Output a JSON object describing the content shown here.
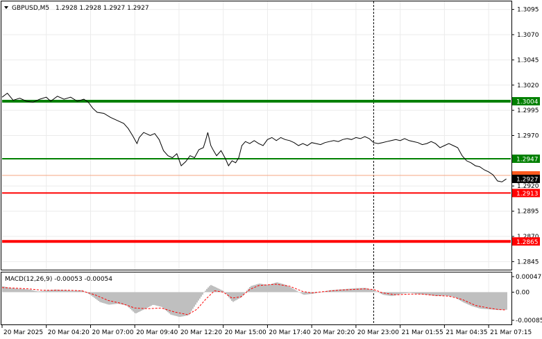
{
  "header": {
    "symbol": "GBPUSD,M5",
    "ohlc": "1.2928 1.2928 1.2927 1.2927"
  },
  "macd": {
    "label": "MACD(12,26,9) -0.00053 -0.00054",
    "scale_labels": [
      "0.00047",
      "0.00",
      "-0.00085"
    ],
    "ylim": [
      -0.00085,
      0.00047
    ],
    "colors": {
      "histogram": "#bfbfbf",
      "signal": "#ff0000"
    }
  },
  "colors": {
    "support_green": "#008000",
    "resistance_red": "#ff0000",
    "price_line": "#000000",
    "bid_line": "#f4a582",
    "current_price_label_bg": "#000000"
  },
  "chart_data": {
    "type": "line",
    "title": "GBPUSD,M5",
    "ylim": [
      1.2837,
      1.3103
    ],
    "y_ticks": [
      "1.3095",
      "1.3070",
      "1.3045",
      "1.3020",
      "1.2995",
      "1.2970",
      "1.2920",
      "1.2895",
      "1.2870",
      "1.2845"
    ],
    "x_ticks": [
      "20 Mar 2025",
      "20 Mar 04:20",
      "20 Mar 07:00",
      "20 Mar 09:40",
      "20 Mar 12:20",
      "20 Mar 15:00",
      "20 Mar 17:40",
      "20 Mar 20:20",
      "20 Mar 23:00",
      "21 Mar 01:55",
      "21 Mar 04:35",
      "21 Mar 07:15"
    ],
    "x_range": [
      0,
      11.5
    ],
    "vertical_marker_x": 8.4,
    "levels": [
      {
        "value": 1.3004,
        "label": "1.3004",
        "color": "#008000",
        "width": 4
      },
      {
        "value": 1.2947,
        "label": "1.2947",
        "color": "#008000",
        "width": 2
      },
      {
        "value": 1.2913,
        "label": "1.2913",
        "color": "#ff0000",
        "width": 2
      },
      {
        "value": 1.2865,
        "label": "1.2865",
        "color": "#ff0000",
        "width": 4
      }
    ],
    "current_price": {
      "value": 1.2927,
      "label": "1.2927"
    },
    "ask_line": {
      "value": 1.29305
    },
    "series": [
      {
        "values": [
          [
            0.0,
            1.3008
          ],
          [
            0.12,
            1.3012
          ],
          [
            0.25,
            1.3005
          ],
          [
            0.4,
            1.3007
          ],
          [
            0.55,
            1.3004
          ],
          [
            0.7,
            1.3003
          ],
          [
            0.85,
            1.3006
          ],
          [
            1.0,
            1.3008
          ],
          [
            1.1,
            1.3004
          ],
          [
            1.25,
            1.3009
          ],
          [
            1.4,
            1.3006
          ],
          [
            1.55,
            1.3008
          ],
          [
            1.7,
            1.3004
          ],
          [
            1.85,
            1.3006
          ],
          [
            1.95,
            1.3003
          ],
          [
            2.05,
            1.2997
          ],
          [
            2.15,
            1.2993
          ],
          [
            2.3,
            1.2992
          ],
          [
            2.45,
            1.2988
          ],
          [
            2.6,
            1.2985
          ],
          [
            2.75,
            1.2982
          ],
          [
            2.85,
            1.2977
          ],
          [
            2.95,
            1.297
          ],
          [
            3.05,
            1.2962
          ],
          [
            3.1,
            1.2968
          ],
          [
            3.2,
            1.2973
          ],
          [
            3.35,
            1.297
          ],
          [
            3.45,
            1.2972
          ],
          [
            3.55,
            1.2966
          ],
          [
            3.65,
            1.2955
          ],
          [
            3.75,
            1.295
          ],
          [
            3.85,
            1.2948
          ],
          [
            3.95,
            1.2952
          ],
          [
            4.05,
            1.294
          ],
          [
            4.15,
            1.2944
          ],
          [
            4.25,
            1.295
          ],
          [
            4.35,
            1.2948
          ],
          [
            4.45,
            1.2956
          ],
          [
            4.55,
            1.2958
          ],
          [
            4.6,
            1.2965
          ],
          [
            4.65,
            1.2973
          ],
          [
            4.72,
            1.296
          ],
          [
            4.78,
            1.2955
          ],
          [
            4.85,
            1.295
          ],
          [
            4.95,
            1.2955
          ],
          [
            5.05,
            1.2947
          ],
          [
            5.12,
            1.294
          ],
          [
            5.2,
            1.2945
          ],
          [
            5.28,
            1.2943
          ],
          [
            5.35,
            1.2948
          ],
          [
            5.42,
            1.296
          ],
          [
            5.5,
            1.2964
          ],
          [
            5.6,
            1.2962
          ],
          [
            5.7,
            1.2965
          ],
          [
            5.8,
            1.2962
          ],
          [
            5.9,
            1.296
          ],
          [
            6.0,
            1.2966
          ],
          [
            6.1,
            1.2968
          ],
          [
            6.2,
            1.2965
          ],
          [
            6.3,
            1.2968
          ],
          [
            6.4,
            1.2966
          ],
          [
            6.5,
            1.2965
          ],
          [
            6.6,
            1.2963
          ],
          [
            6.7,
            1.296
          ],
          [
            6.8,
            1.2962
          ],
          [
            6.9,
            1.296
          ],
          [
            7.0,
            1.2963
          ],
          [
            7.1,
            1.2962
          ],
          [
            7.2,
            1.2961
          ],
          [
            7.3,
            1.2963
          ],
          [
            7.4,
            1.2964
          ],
          [
            7.5,
            1.2965
          ],
          [
            7.6,
            1.2964
          ],
          [
            7.7,
            1.2966
          ],
          [
            7.8,
            1.2967
          ],
          [
            7.9,
            1.2966
          ],
          [
            8.0,
            1.2968
          ],
          [
            8.1,
            1.2967
          ],
          [
            8.2,
            1.2969
          ],
          [
            8.3,
            1.2967
          ],
          [
            8.4,
            1.2963
          ],
          [
            8.5,
            1.2962
          ],
          [
            8.6,
            1.2963
          ],
          [
            8.7,
            1.2964
          ],
          [
            8.8,
            1.2965
          ],
          [
            8.9,
            1.2966
          ],
          [
            9.0,
            1.2965
          ],
          [
            9.1,
            1.2967
          ],
          [
            9.2,
            1.2965
          ],
          [
            9.3,
            1.2964
          ],
          [
            9.4,
            1.2963
          ],
          [
            9.5,
            1.2961
          ],
          [
            9.6,
            1.2962
          ],
          [
            9.7,
            1.2964
          ],
          [
            9.8,
            1.2962
          ],
          [
            9.9,
            1.2958
          ],
          [
            10.0,
            1.296
          ],
          [
            10.1,
            1.2962
          ],
          [
            10.2,
            1.296
          ],
          [
            10.3,
            1.2958
          ],
          [
            10.4,
            1.295
          ],
          [
            10.5,
            1.2945
          ],
          [
            10.6,
            1.2943
          ],
          [
            10.7,
            1.294
          ],
          [
            10.8,
            1.2939
          ],
          [
            10.9,
            1.2936
          ],
          [
            11.0,
            1.2934
          ],
          [
            11.1,
            1.2931
          ],
          [
            11.2,
            1.2925
          ],
          [
            11.3,
            1.2924
          ],
          [
            11.4,
            1.2927
          ]
        ]
      }
    ],
    "macd_histogram": [
      [
        0.0,
        0.00018
      ],
      [
        0.2,
        0.00012
      ],
      [
        0.4,
        0.0001
      ],
      [
        0.6,
        8e-05
      ],
      [
        0.8,
        2e-05
      ],
      [
        1.0,
        5e-05
      ],
      [
        1.2,
        8e-05
      ],
      [
        1.4,
        6e-05
      ],
      [
        1.6,
        4e-05
      ],
      [
        1.8,
        6e-05
      ],
      [
        2.0,
        -0.0001
      ],
      [
        2.2,
        -0.0003
      ],
      [
        2.4,
        -0.00038
      ],
      [
        2.6,
        -0.00035
      ],
      [
        2.8,
        -0.0004
      ],
      [
        3.0,
        -0.00065
      ],
      [
        3.2,
        -0.00052
      ],
      [
        3.4,
        -0.00038
      ],
      [
        3.6,
        -0.00045
      ],
      [
        3.8,
        -0.00068
      ],
      [
        4.0,
        -0.00075
      ],
      [
        4.2,
        -0.0007
      ],
      [
        4.4,
        -0.0003
      ],
      [
        4.6,
        8e-05
      ],
      [
        4.7,
        0.00022
      ],
      [
        4.8,
        0.00016
      ],
      [
        5.0,
        3e-05
      ],
      [
        5.2,
        -0.0003
      ],
      [
        5.4,
        -0.00015
      ],
      [
        5.6,
        0.00018
      ],
      [
        5.8,
        0.00026
      ],
      [
        6.0,
        0.00022
      ],
      [
        6.2,
        0.0003
      ],
      [
        6.4,
        0.00022
      ],
      [
        6.6,
        8e-05
      ],
      [
        6.8,
        -8e-05
      ],
      [
        7.0,
        -5e-05
      ],
      [
        7.2,
        0.0
      ],
      [
        7.4,
        6e-05
      ],
      [
        7.6,
        8e-05
      ],
      [
        7.8,
        0.0001
      ],
      [
        8.0,
        0.00012
      ],
      [
        8.2,
        0.00013
      ],
      [
        8.4,
        5e-05
      ],
      [
        8.6,
        -8e-05
      ],
      [
        8.8,
        -0.00012
      ],
      [
        9.0,
        -5e-05
      ],
      [
        9.2,
        -2e-05
      ],
      [
        9.4,
        -6e-05
      ],
      [
        9.6,
        -8e-05
      ],
      [
        9.8,
        -0.00012
      ],
      [
        10.0,
        -0.0001
      ],
      [
        10.2,
        -0.00014
      ],
      [
        10.4,
        -0.0003
      ],
      [
        10.6,
        -0.00042
      ],
      [
        10.8,
        -0.0005
      ],
      [
        11.0,
        -0.00052
      ],
      [
        11.2,
        -0.00054
      ],
      [
        11.4,
        -0.00053
      ]
    ],
    "macd_signal": [
      [
        0.0,
        0.00014
      ],
      [
        0.3,
        0.00012
      ],
      [
        0.6,
        0.0001
      ],
      [
        0.9,
        6e-05
      ],
      [
        1.2,
        6e-05
      ],
      [
        1.5,
        6e-05
      ],
      [
        1.8,
        4e-05
      ],
      [
        2.1,
        -8e-05
      ],
      [
        2.4,
        -0.00025
      ],
      [
        2.7,
        -0.00034
      ],
      [
        3.0,
        -0.00048
      ],
      [
        3.3,
        -0.0005
      ],
      [
        3.6,
        -0.00048
      ],
      [
        3.9,
        -0.0006
      ],
      [
        4.2,
        -0.00068
      ],
      [
        4.4,
        -0.00052
      ],
      [
        4.6,
        -0.00022
      ],
      [
        4.8,
        4e-05
      ],
      [
        5.0,
        0.0
      ],
      [
        5.2,
        -0.00018
      ],
      [
        5.4,
        -0.00014
      ],
      [
        5.6,
        8e-05
      ],
      [
        5.8,
        0.0002
      ],
      [
        6.0,
        0.00022
      ],
      [
        6.2,
        0.00024
      ],
      [
        6.5,
        0.00018
      ],
      [
        6.8,
        2e-05
      ],
      [
        7.0,
        -2e-05
      ],
      [
        7.3,
        2e-05
      ],
      [
        7.6,
        6e-05
      ],
      [
        7.9,
        8e-05
      ],
      [
        8.2,
        0.0001
      ],
      [
        8.4,
        8e-05
      ],
      [
        8.6,
        -2e-05
      ],
      [
        8.9,
        -8e-05
      ],
      [
        9.2,
        -6e-05
      ],
      [
        9.5,
        -6e-05
      ],
      [
        9.8,
        -0.0001
      ],
      [
        10.1,
        -0.00012
      ],
      [
        10.4,
        -0.00022
      ],
      [
        10.7,
        -0.0004
      ],
      [
        11.0,
        -0.00048
      ],
      [
        11.2,
        -0.00052
      ],
      [
        11.4,
        -0.00054
      ]
    ]
  }
}
